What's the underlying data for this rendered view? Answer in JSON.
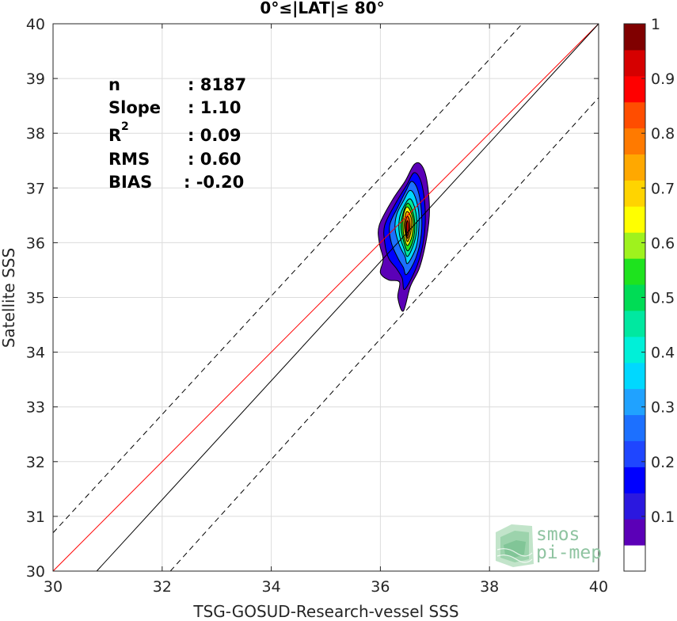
{
  "chart_data": {
    "type": "scatter",
    "title": "0°≤|LAT|≤ 80°",
    "xlabel": "TSG-GOSUD-Research-vessel SSS",
    "ylabel": "Satellite SSS",
    "xlim": [
      30,
      40
    ],
    "ylim": [
      30,
      40
    ],
    "xticks": [
      "30",
      "32",
      "34",
      "36",
      "38",
      "40"
    ],
    "yticks": [
      "30",
      "31",
      "32",
      "33",
      "34",
      "35",
      "36",
      "37",
      "38",
      "39",
      "40"
    ],
    "grid": true,
    "stats": [
      {
        "key": "n",
        "value": ": 8187"
      },
      {
        "key": "Slope",
        "value": ": 1.10"
      },
      {
        "key": "R",
        "sup": "2",
        "value": ": 0.09"
      },
      {
        "key": "RMS",
        "value": ": 0.60"
      },
      {
        "key": "BIAS",
        "value": ": -0.20"
      }
    ],
    "lines": [
      {
        "name": "one-to-one",
        "color": "#ff0000",
        "style": "solid",
        "x": [
          30,
          40
        ],
        "y": [
          30,
          40
        ]
      },
      {
        "name": "regression",
        "color": "#000000",
        "style": "solid",
        "x": [
          30.8,
          40
        ],
        "y": [
          30,
          40
        ]
      },
      {
        "name": "upper-bound",
        "color": "#000000",
        "style": "dashed",
        "x": [
          30,
          38.6
        ],
        "y": [
          30.7,
          40
        ]
      },
      {
        "name": "lower-bound",
        "color": "#000000",
        "style": "dashed",
        "x": [
          32.15,
          40
        ],
        "y": [
          30,
          38.65
        ]
      }
    ],
    "density_contours": [
      {
        "level": 0.05,
        "points": [
          [
            36.42,
            34.75
          ],
          [
            36.55,
            35.2
          ],
          [
            36.72,
            35.55
          ],
          [
            36.85,
            36.1
          ],
          [
            36.9,
            36.6
          ],
          [
            36.85,
            37.15
          ],
          [
            36.75,
            37.42
          ],
          [
            36.62,
            37.43
          ],
          [
            36.45,
            37.12
          ],
          [
            36.22,
            36.78
          ],
          [
            35.98,
            36.32
          ],
          [
            35.98,
            36.0
          ],
          [
            36.05,
            35.7
          ],
          [
            36.0,
            35.45
          ],
          [
            36.15,
            35.32
          ],
          [
            36.35,
            35.28
          ],
          [
            36.32,
            35.0
          ]
        ]
      },
      {
        "level": 0.15,
        "points": [
          [
            36.45,
            35.15
          ],
          [
            36.68,
            35.6
          ],
          [
            36.8,
            36.1
          ],
          [
            36.82,
            36.62
          ],
          [
            36.75,
            37.1
          ],
          [
            36.62,
            37.28
          ],
          [
            36.48,
            37.05
          ],
          [
            36.28,
            36.72
          ],
          [
            36.08,
            36.32
          ],
          [
            36.08,
            36.0
          ],
          [
            36.15,
            35.72
          ],
          [
            36.3,
            35.52
          ],
          [
            36.4,
            35.35
          ]
        ]
      },
      {
        "level": 0.25,
        "points": [
          [
            36.48,
            35.42
          ],
          [
            36.65,
            35.72
          ],
          [
            36.75,
            36.15
          ],
          [
            36.75,
            36.6
          ],
          [
            36.68,
            36.98
          ],
          [
            36.57,
            37.12
          ],
          [
            36.47,
            36.95
          ],
          [
            36.32,
            36.65
          ],
          [
            36.17,
            36.32
          ],
          [
            36.2,
            36.0
          ],
          [
            36.32,
            35.72
          ],
          [
            36.42,
            35.55
          ]
        ]
      },
      {
        "level": 0.35,
        "points": [
          [
            36.5,
            35.62
          ],
          [
            36.65,
            35.9
          ],
          [
            36.7,
            36.2
          ],
          [
            36.7,
            36.58
          ],
          [
            36.62,
            36.88
          ],
          [
            36.53,
            36.95
          ],
          [
            36.43,
            36.78
          ],
          [
            36.3,
            36.52
          ],
          [
            36.27,
            36.25
          ],
          [
            36.35,
            35.95
          ],
          [
            36.45,
            35.75
          ]
        ]
      },
      {
        "level": 0.45,
        "points": [
          [
            36.5,
            35.75
          ],
          [
            36.62,
            36.0
          ],
          [
            36.67,
            36.3
          ],
          [
            36.64,
            36.6
          ],
          [
            36.55,
            36.8
          ],
          [
            36.45,
            36.7
          ],
          [
            36.35,
            36.45
          ],
          [
            36.35,
            36.15
          ],
          [
            36.43,
            35.9
          ]
        ]
      },
      {
        "level": 0.55,
        "points": [
          [
            36.5,
            35.85
          ],
          [
            36.6,
            36.05
          ],
          [
            36.63,
            36.35
          ],
          [
            36.58,
            36.6
          ],
          [
            36.5,
            36.72
          ],
          [
            36.42,
            36.55
          ],
          [
            36.38,
            36.3
          ],
          [
            36.42,
            36.05
          ]
        ]
      },
      {
        "level": 0.65,
        "points": [
          [
            36.5,
            35.95
          ],
          [
            36.58,
            36.12
          ],
          [
            36.6,
            36.38
          ],
          [
            36.55,
            36.58
          ],
          [
            36.48,
            36.65
          ],
          [
            36.42,
            36.48
          ],
          [
            36.42,
            36.2
          ],
          [
            36.45,
            36.05
          ]
        ]
      },
      {
        "level": 0.75,
        "points": [
          [
            36.5,
            36.02
          ],
          [
            36.56,
            36.2
          ],
          [
            36.57,
            36.42
          ],
          [
            36.52,
            36.55
          ],
          [
            36.47,
            36.55
          ],
          [
            36.44,
            36.35
          ],
          [
            36.46,
            36.15
          ]
        ]
      },
      {
        "level": 0.85,
        "points": [
          [
            36.5,
            36.08
          ],
          [
            36.54,
            36.25
          ],
          [
            36.53,
            36.42
          ],
          [
            36.49,
            36.48
          ],
          [
            36.46,
            36.35
          ],
          [
            36.47,
            36.18
          ]
        ]
      },
      {
        "level": 0.95,
        "points": [
          [
            36.49,
            36.12
          ],
          [
            36.52,
            36.28
          ],
          [
            36.5,
            36.4
          ],
          [
            36.48,
            36.35
          ],
          [
            36.48,
            36.2
          ]
        ]
      }
    ],
    "colorbar": {
      "ticks": [
        "0.1",
        "0.2",
        "0.3",
        "0.4",
        "0.5",
        "0.6",
        "0.7",
        "0.8",
        "0.9",
        "1"
      ],
      "tick_values": [
        0.1,
        0.2,
        0.3,
        0.4,
        0.5,
        0.6,
        0.7,
        0.8,
        0.9,
        1.0
      ],
      "range": [
        0,
        1
      ],
      "colors": [
        "#ffffff",
        "#5b00b7",
        "#2b18df",
        "#0000ff",
        "#1f46ff",
        "#1c70ff",
        "#20a2ff",
        "#00d8ff",
        "#00f0d8",
        "#00e8a0",
        "#00dc55",
        "#1ee31e",
        "#9ff21d",
        "#ffff00",
        "#ffd400",
        "#ffa800",
        "#ff7a00",
        "#ff4d00",
        "#ff0000",
        "#d60000",
        "#800000"
      ]
    },
    "logo": {
      "line1": "smos",
      "line2": "pi-mep"
    }
  }
}
